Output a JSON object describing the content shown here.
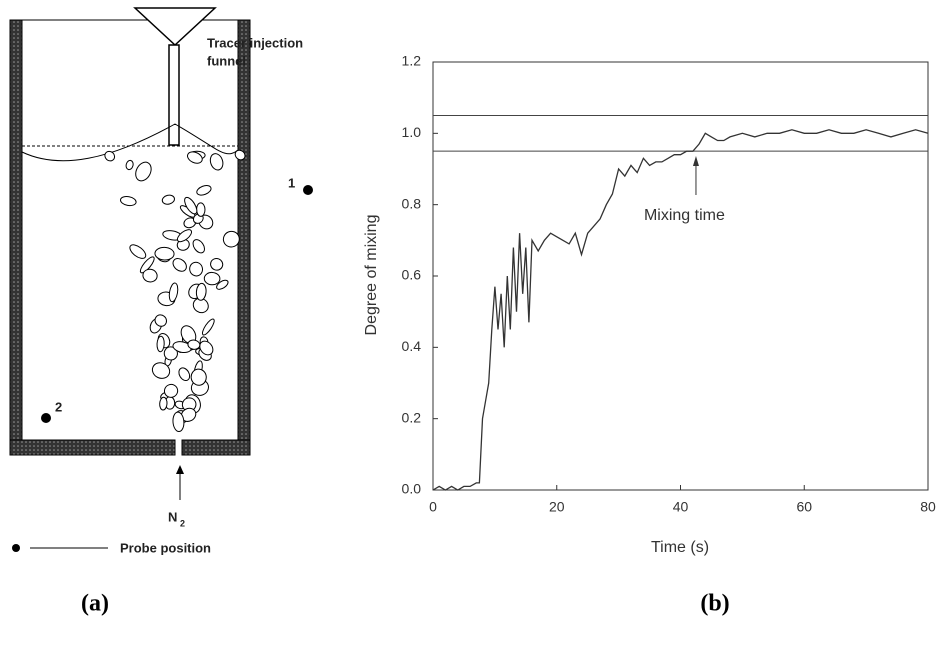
{
  "diagram": {
    "funnel_label": [
      "Tracer injection",
      "funnel"
    ],
    "probes": [
      "1",
      "2"
    ],
    "gas": "N",
    "gas_subscript": "2",
    "legend": "Probe position"
  },
  "panel_labels": [
    "(a)",
    "(b)"
  ],
  "chart_data": {
    "type": "line",
    "x_label": "Time (s)",
    "y_label": "Degree of mixing",
    "color": "#333333",
    "x": [
      0,
      1,
      2,
      3,
      4,
      5,
      6,
      7,
      7.5,
      8,
      8.5,
      9,
      9.5,
      10,
      10.5,
      11,
      11.5,
      12,
      12.5,
      13,
      13.5,
      14,
      14.5,
      15,
      15.5,
      16,
      17,
      18,
      19,
      20,
      21,
      22,
      23,
      24,
      25,
      26,
      27,
      28,
      29,
      30,
      31,
      32,
      33,
      34,
      35,
      36,
      37,
      38,
      39,
      40,
      41,
      42,
      43,
      44,
      45,
      46,
      47,
      48,
      50,
      52,
      54,
      56,
      58,
      60,
      62,
      64,
      66,
      68,
      70,
      72,
      74,
      76,
      78,
      80
    ],
    "values": [
      0.0,
      0.01,
      0.0,
      0.01,
      0.0,
      0.01,
      0.01,
      0.02,
      0.02,
      0.2,
      0.25,
      0.3,
      0.45,
      0.57,
      0.45,
      0.55,
      0.4,
      0.6,
      0.45,
      0.68,
      0.5,
      0.72,
      0.55,
      0.68,
      0.47,
      0.7,
      0.67,
      0.7,
      0.72,
      0.71,
      0.7,
      0.69,
      0.72,
      0.66,
      0.72,
      0.74,
      0.76,
      0.8,
      0.83,
      0.9,
      0.88,
      0.91,
      0.89,
      0.93,
      0.91,
      0.92,
      0.92,
      0.93,
      0.94,
      0.94,
      0.95,
      0.95,
      0.97,
      1.0,
      0.99,
      0.98,
      0.98,
      0.99,
      1.0,
      0.99,
      1.0,
      1.0,
      1.01,
      1.0,
      1.0,
      1.01,
      1.0,
      1.0,
      1.01,
      1.0,
      0.99,
      1.0,
      1.01,
      1.0
    ],
    "xlim": [
      0,
      80
    ],
    "ylim": [
      0,
      1.2
    ],
    "xticks": [
      0,
      20,
      40,
      60,
      80
    ],
    "yticks": [
      {
        "value": 0,
        "label": "0.0"
      },
      0.2,
      0.4,
      0.6,
      0.8,
      {
        "value": 1,
        "label": "1.0"
      },
      1.2
    ],
    "hlines": [
      0.95,
      1.05
    ],
    "annotation": {
      "text": "Mixing time",
      "x": 42.5
    }
  }
}
